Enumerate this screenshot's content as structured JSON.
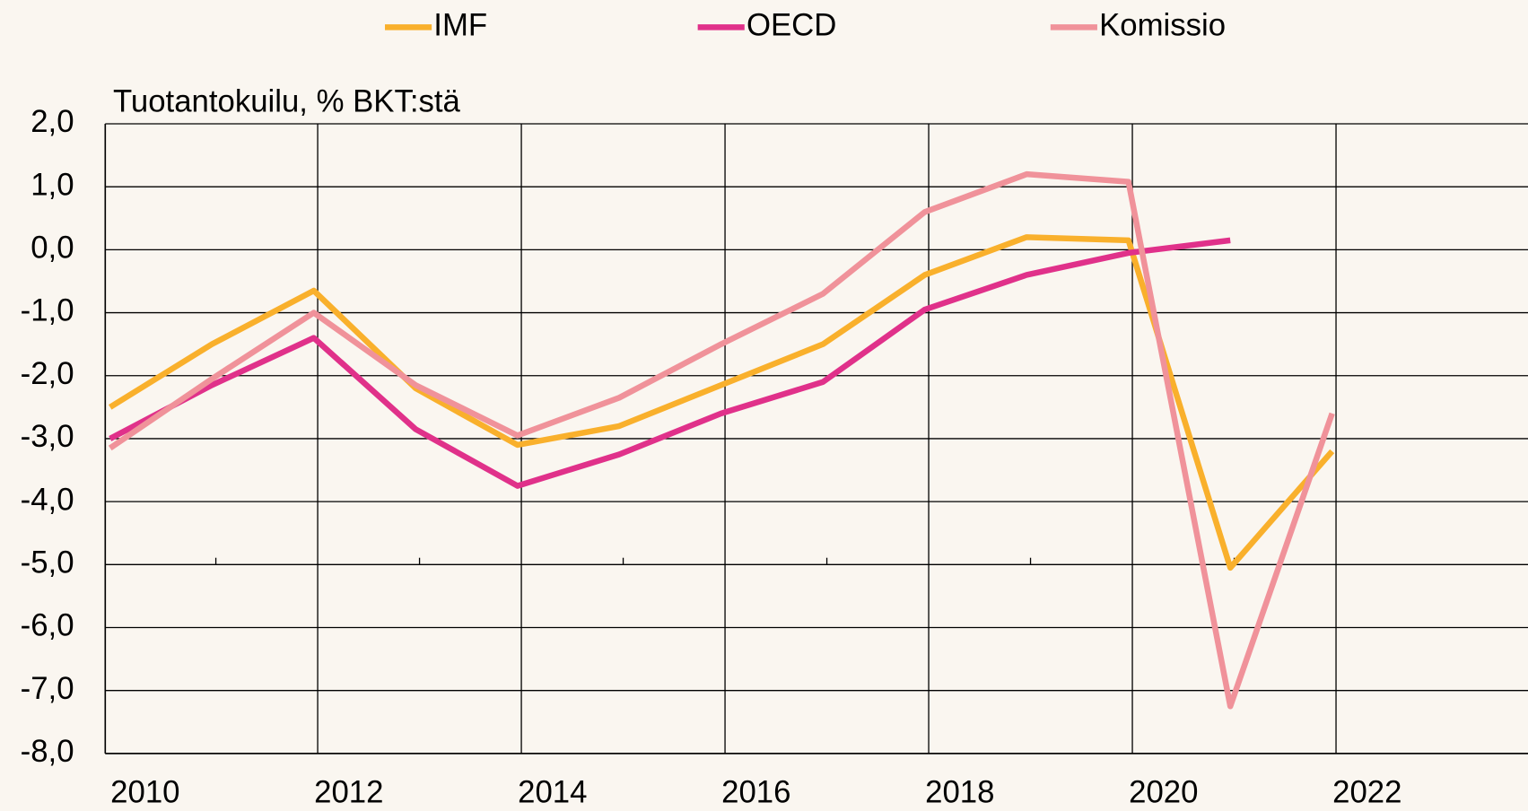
{
  "chart_data": {
    "type": "line",
    "ylabel": "Tuotantokuilu, % BKT:stä",
    "categories": [
      "2010",
      null,
      "2012",
      null,
      "2014",
      null,
      "2016",
      null,
      "2018",
      null,
      "2020",
      null,
      "2022"
    ],
    "series": [
      {
        "name": "IMF",
        "color": "#f9b02c",
        "values": [
          -2.5,
          -1.5,
          -0.65,
          -2.2,
          -3.1,
          -2.8,
          -2.15,
          -1.5,
          -0.4,
          0.2,
          0.15,
          -5.05,
          -3.2
        ]
      },
      {
        "name": "OECD",
        "color": "#e0318a",
        "values": [
          -3.0,
          -2.15,
          -1.4,
          -2.85,
          -3.75,
          -3.25,
          -2.6,
          -2.1,
          -0.95,
          -0.4,
          -0.05,
          0.15,
          null
        ]
      },
      {
        "name": "Komissio",
        "color": "#f0929a",
        "values": [
          -3.15,
          -2.05,
          -1.0,
          -2.15,
          -2.95,
          -2.35,
          -1.5,
          -0.7,
          0.6,
          1.2,
          1.08,
          -7.25,
          -2.6
        ]
      }
    ],
    "ylim": [
      -8,
      2
    ],
    "yticks": [
      {
        "value": -8,
        "label": "-8,0"
      },
      {
        "value": -7,
        "label": "-7,0"
      },
      {
        "value": -6,
        "label": "-6,0"
      },
      {
        "value": -5,
        "label": "-5,0"
      },
      {
        "value": -4,
        "label": "-4,0"
      },
      {
        "value": -3,
        "label": "-3,0"
      },
      {
        "value": -2,
        "label": "-2,0"
      },
      {
        "value": -1,
        "label": "-1,0"
      },
      {
        "value": 0,
        "label": "0,0"
      },
      {
        "value": 1,
        "label": "1,0"
      },
      {
        "value": 2,
        "label": "2,0"
      }
    ],
    "grid": true,
    "legend": "top"
  }
}
